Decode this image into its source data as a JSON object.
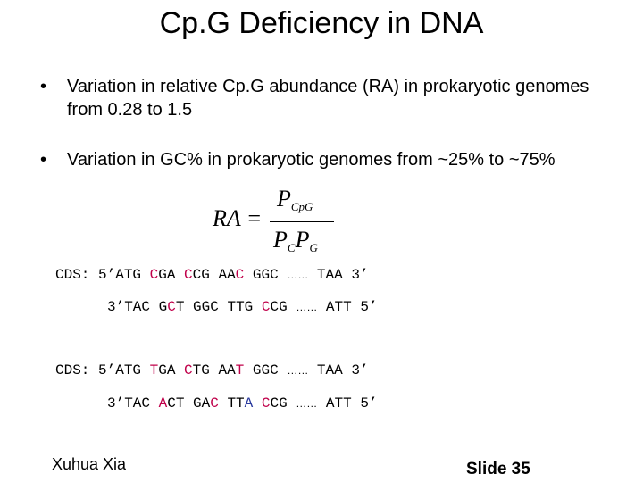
{
  "title": "Cp.G Deficiency in DNA",
  "bullets": [
    "Variation in relative Cp.G abundance (RA) in prokaryotic genomes from 0.28 to 1.5",
    "Variation in GC% in prokaryotic genomes from ~25% to ~75%"
  ],
  "bullet_symbol": "•",
  "formula": {
    "lhs": "RA =",
    "numerator": "P",
    "numerator_sub": "CpG",
    "denominator_a": "P",
    "denominator_a_sub": "C",
    "denominator_b": "P",
    "denominator_b_sub": "G"
  },
  "sequences": {
    "line1": {
      "prefix": "CDS: 5’ATG ",
      "codon1": [
        "",
        "C",
        "GA"
      ],
      "codon2": [
        "",
        "C",
        "CG"
      ],
      "codon3": [
        "AA",
        "C",
        ""
      ],
      "codon4": "GGC",
      "dots": "……",
      "suffix": "TAA 3’"
    },
    "line2": {
      "prefix": "3’TAC ",
      "codon1": [
        "G",
        "C",
        "T"
      ],
      "codon2": "GGC",
      "codon3": "TTG",
      "codon4": [
        "",
        "C",
        "CG"
      ],
      "dots": "……",
      "suffix": "ATT 5’"
    },
    "line3": {
      "prefix": "CDS: 5’ATG ",
      "codon1": [
        "",
        "T",
        "GA"
      ],
      "codon2": [
        "",
        "C",
        "TG"
      ],
      "codon3": [
        "AA",
        "T",
        ""
      ],
      "codon4": "GGC",
      "dots": "……",
      "suffix": "TAA 3’"
    },
    "line4": {
      "prefix": "3’TAC ",
      "codon1": [
        "",
        "A",
        "CT"
      ],
      "codon2": [
        "GA",
        "C",
        ""
      ],
      "codon3": [
        "TT",
        "A",
        ""
      ],
      "codon4": [
        "",
        "C",
        "CG"
      ],
      "dots": "……",
      "suffix": "ATT 5’"
    }
  },
  "footer": {
    "author": "Xuhua Xia",
    "slide": "Slide 35"
  }
}
